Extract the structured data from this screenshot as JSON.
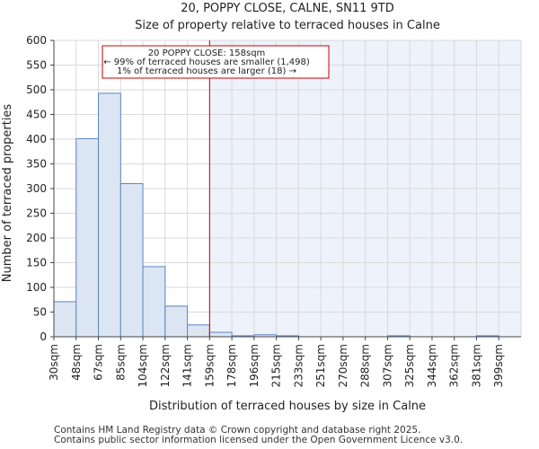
{
  "chart_data": {
    "type": "bar",
    "title": "20, POPPY CLOSE, CALNE, SN11 9TD",
    "subtitle": "Size of property relative to terraced houses in Calne",
    "xlabel": "Distribution of terraced houses by size in Calne",
    "ylabel": "Number of terraced properties",
    "ylim": [
      0,
      600
    ],
    "yticks": [
      0,
      50,
      100,
      150,
      200,
      250,
      300,
      350,
      400,
      450,
      500,
      550,
      600
    ],
    "categories": [
      "30sqm",
      "48sqm",
      "67sqm",
      "85sqm",
      "104sqm",
      "122sqm",
      "141sqm",
      "159sqm",
      "178sqm",
      "196sqm",
      "215sqm",
      "233sqm",
      "251sqm",
      "270sqm",
      "288sqm",
      "307sqm",
      "325sqm",
      "344sqm",
      "362sqm",
      "381sqm",
      "399sqm"
    ],
    "values": [
      71,
      401,
      493,
      310,
      142,
      62,
      24,
      9,
      2,
      4,
      2,
      0,
      0,
      0,
      0,
      2,
      0,
      0,
      0,
      2,
      0
    ],
    "marker": {
      "category": "159sqm",
      "label": "20 POPPY CLOSE: 158sqm"
    },
    "annotation": {
      "line1": "20 POPPY CLOSE: 158sqm",
      "line2": "← 99% of terraced houses are smaller (1,498)",
      "line3": "1% of terraced houses are larger (18) →"
    },
    "colors": {
      "bar_fill": "#dce6f2",
      "bar_stroke": "#5b84c4",
      "marker": "#cc0000",
      "highlight_fill": "#eef2fa",
      "grid": "#d9d9d9"
    },
    "grid": true
  },
  "footer": {
    "line1": "Contains HM Land Registry data © Crown copyright and database right 2025.",
    "line2": "Contains public sector information licensed under the Open Government Licence v3.0."
  }
}
